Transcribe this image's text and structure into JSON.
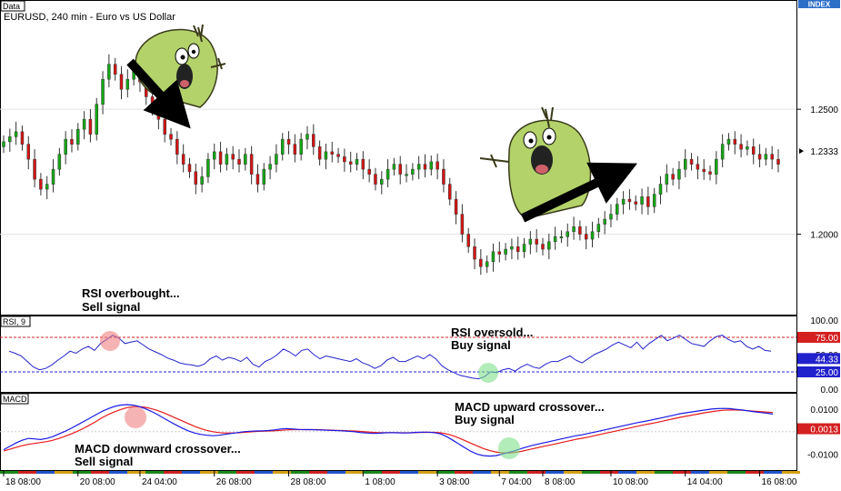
{
  "chart_data": [
    {
      "type": "candlestick",
      "title": "Data",
      "subtitle": "EURUSD, 240 min - Euro vs US Dollar",
      "badge": "INDEX",
      "y_ticks": [
        "1.2500",
        "1.2000"
      ],
      "y_tick_values": [
        1.25,
        1.2
      ],
      "ylim": [
        1.17,
        1.285
      ],
      "last_price": "1.2333",
      "last_price_value": 1.2333,
      "annotations": [
        "RSI overbought...",
        "Sell signal"
      ],
      "series_close": [
        1.237,
        1.239,
        1.241,
        1.236,
        1.23,
        1.222,
        1.218,
        1.22,
        1.226,
        1.232,
        1.238,
        1.236,
        1.242,
        1.246,
        1.24,
        1.252,
        1.262,
        1.268,
        1.264,
        1.258,
        1.262,
        1.266,
        1.261,
        1.255,
        1.25,
        1.246,
        1.24,
        1.238,
        1.232,
        1.228,
        1.225,
        1.22,
        1.223,
        1.23,
        1.233,
        1.228,
        1.232,
        1.23,
        1.228,
        1.232,
        1.224,
        1.22,
        1.226,
        1.228,
        1.232,
        1.238,
        1.236,
        1.232,
        1.238,
        1.24,
        1.235,
        1.23,
        1.233,
        1.232,
        1.231,
        1.229,
        1.228,
        1.23,
        1.226,
        1.224,
        1.22,
        1.222,
        1.226,
        1.228,
        1.224,
        1.224,
        1.226,
        1.228,
        1.226,
        1.229,
        1.226,
        1.22,
        1.214,
        1.208,
        1.2,
        1.195,
        1.19,
        1.187,
        1.189,
        1.193,
        1.192,
        1.194,
        1.195,
        1.193,
        1.196,
        1.198,
        1.196,
        1.194,
        1.197,
        1.199,
        1.199,
        1.201,
        1.203,
        1.2,
        1.198,
        1.201,
        1.204,
        1.206,
        1.208,
        1.212,
        1.214,
        1.213,
        1.212,
        1.215,
        1.211,
        1.216,
        1.22,
        1.224,
        1.222,
        1.226,
        1.23,
        1.228,
        1.226,
        1.225,
        1.224,
        1.23,
        1.236,
        1.238,
        1.236,
        1.234,
        1.235,
        1.232,
        1.23,
        1.232,
        1.23,
        1.228
      ]
    },
    {
      "type": "line",
      "title": "RSI, 9",
      "y_ticks": [
        "100.00",
        "75.00",
        "50.00",
        "44.33",
        "25.00",
        "0.00"
      ],
      "ylim": [
        0,
        100
      ],
      "levels": [
        75,
        25
      ],
      "current_value": 44.33,
      "annotations": [
        "RSI oversold...",
        "Buy signal"
      ],
      "series": [
        {
          "name": "RSI",
          "values": [
            55,
            52,
            48,
            40,
            32,
            28,
            30,
            35,
            42,
            48,
            55,
            52,
            58,
            62,
            56,
            66,
            72,
            78,
            74,
            66,
            68,
            70,
            64,
            58,
            54,
            50,
            45,
            42,
            38,
            36,
            35,
            33,
            36,
            44,
            48,
            42,
            46,
            44,
            40,
            46,
            36,
            32,
            40,
            44,
            50,
            58,
            54,
            48,
            56,
            58,
            50,
            44,
            48,
            46,
            44,
            42,
            40,
            44,
            38,
            35,
            30,
            34,
            42,
            46,
            40,
            40,
            44,
            48,
            44,
            50,
            44,
            34,
            28,
            24,
            20,
            18,
            16,
            15,
            18,
            25,
            24,
            28,
            30,
            26,
            32,
            36,
            32,
            30,
            36,
            40,
            40,
            44,
            48,
            42,
            38,
            44,
            50,
            54,
            58,
            64,
            68,
            64,
            60,
            68,
            58,
            66,
            72,
            78,
            70,
            74,
            78,
            72,
            66,
            64,
            62,
            70,
            76,
            78,
            72,
            68,
            70,
            62,
            58,
            62,
            56,
            55
          ]
        }
      ]
    },
    {
      "type": "line",
      "title": "MACD",
      "y_ticks": [
        "0.0100",
        "0.0013",
        "-0.0100"
      ],
      "ylim": [
        -0.015,
        0.014
      ],
      "current_value": 0.0013,
      "annotations": [
        "MACD upward crossover...",
        "Buy signal",
        "MACD downward crossover...",
        "Sell signal"
      ],
      "x_ticks": [
        "18 08:00",
        "20 08:00",
        "24 04:00",
        "26 08:00",
        "28 08:00",
        "1 08:00",
        "3 08:00",
        "7 04:00",
        "8 08:00",
        "10 08:00",
        "14 04:00",
        "16 08:00"
      ],
      "x_tick_index": [
        0,
        12,
        22,
        34,
        46,
        58,
        70,
        80,
        87,
        98,
        110,
        122
      ],
      "series": [
        {
          "name": "MACD",
          "color": "#1a1ae6",
          "values": [
            -0.008,
            -0.0065,
            -0.005,
            -0.0038,
            -0.003,
            -0.0032,
            -0.0035,
            -0.003,
            -0.0022,
            -0.001,
            0.0002,
            0.0015,
            0.003,
            0.0045,
            0.006,
            0.0075,
            0.009,
            0.0102,
            0.0112,
            0.0118,
            0.012,
            0.0118,
            0.0112,
            0.0102,
            0.009,
            0.0076,
            0.006,
            0.0045,
            0.003,
            0.0016,
            0.0004,
            -0.0006,
            -0.0012,
            -0.0016,
            -0.0018,
            -0.0016,
            -0.0012,
            -0.0008,
            -0.0004,
            0.0,
            0.0002,
            0.0003,
            0.0004,
            0.0005,
            0.0008,
            0.0012,
            0.0014,
            0.0012,
            0.001,
            0.0009,
            0.0009,
            0.0008,
            0.0007,
            0.0006,
            0.0005,
            0.0004,
            0.0002,
            0.0,
            -0.0004,
            -0.0006,
            -0.0008,
            -0.0007,
            -0.0005,
            -0.0004,
            -0.0005,
            -0.0006,
            -0.0005,
            -0.0003,
            -0.0002,
            -0.0002,
            -0.0004,
            -0.001,
            -0.0022,
            -0.0038,
            -0.0055,
            -0.0072,
            -0.0088,
            -0.01,
            -0.0106,
            -0.0108,
            -0.0106,
            -0.01,
            -0.0092,
            -0.0085,
            -0.0076,
            -0.0068,
            -0.006,
            -0.0054,
            -0.0048,
            -0.0042,
            -0.0036,
            -0.003,
            -0.0024,
            -0.0018,
            -0.0014,
            -0.0008,
            -0.0002,
            0.0004,
            0.001,
            0.0016,
            0.0022,
            0.0028,
            0.0034,
            0.004,
            0.0045,
            0.005,
            0.0056,
            0.0062,
            0.0068,
            0.0074,
            0.008,
            0.0084,
            0.0088,
            0.0092,
            0.0096,
            0.01,
            0.0102,
            0.0103,
            0.0102,
            0.0099,
            0.0096,
            0.0092,
            0.0088,
            0.0085,
            0.0082,
            0.0078
          ]
        },
        {
          "name": "Signal",
          "color": "#e61a1a",
          "values": [
            -0.0085,
            -0.0078,
            -0.007,
            -0.0062,
            -0.0056,
            -0.0052,
            -0.0048,
            -0.0044,
            -0.0038,
            -0.003,
            -0.002,
            -0.001,
            0.0002,
            0.0015,
            0.003,
            0.0045,
            0.0062,
            0.0076,
            0.0088,
            0.0098,
            0.0106,
            0.011,
            0.0111,
            0.0108,
            0.0102,
            0.0094,
            0.0084,
            0.0072,
            0.006,
            0.0048,
            0.0036,
            0.0024,
            0.0014,
            0.0006,
            0.0,
            -0.0004,
            -0.0006,
            -0.0006,
            -0.0005,
            -0.0003,
            -0.0001,
            0.0001,
            0.0002,
            0.0003,
            0.0004,
            0.0006,
            0.0008,
            0.0009,
            0.0009,
            0.0009,
            0.0009,
            0.0009,
            0.0008,
            0.0007,
            0.0006,
            0.0005,
            0.0004,
            0.0003,
            0.0001,
            -0.0001,
            -0.0003,
            -0.0004,
            -0.0004,
            -0.0004,
            -0.0004,
            -0.0005,
            -0.0005,
            -0.0004,
            -0.0003,
            -0.0003,
            -0.0003,
            -0.0005,
            -0.001,
            -0.0018,
            -0.0028,
            -0.004,
            -0.0052,
            -0.0064,
            -0.0075,
            -0.0084,
            -0.009,
            -0.0094,
            -0.0094,
            -0.0092,
            -0.0088,
            -0.0082,
            -0.0076,
            -0.007,
            -0.0064,
            -0.0058,
            -0.0052,
            -0.0046,
            -0.004,
            -0.0034,
            -0.0029,
            -0.0024,
            -0.0018,
            -0.0012,
            -0.0006,
            0.0,
            0.0006,
            0.0012,
            0.0018,
            0.0024,
            0.003,
            0.0035,
            0.004,
            0.0046,
            0.0052,
            0.0058,
            0.0064,
            0.0069,
            0.0074,
            0.0079,
            0.0084,
            0.0088,
            0.0092,
            0.0095,
            0.0096,
            0.0096,
            0.0095,
            0.0093,
            0.0091,
            0.0089,
            0.0087,
            0.0085
          ]
        }
      ]
    }
  ]
}
